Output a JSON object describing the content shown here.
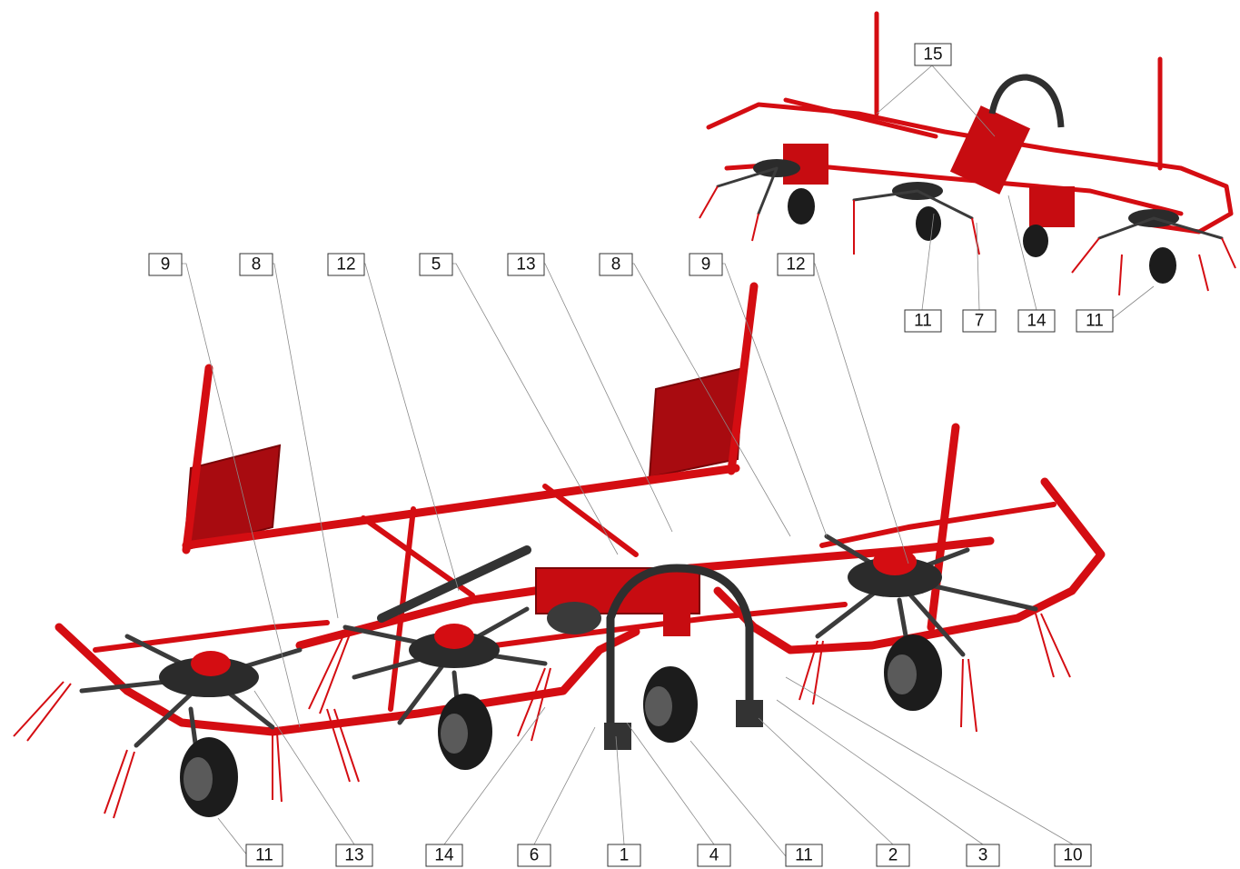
{
  "callouts": [
    {
      "id": "c-9-a",
      "text": "9"
    },
    {
      "id": "c-8-a",
      "text": "8"
    },
    {
      "id": "c-12-a",
      "text": "12"
    },
    {
      "id": "c-5",
      "text": "5"
    },
    {
      "id": "c-13-a",
      "text": "13"
    },
    {
      "id": "c-8-b",
      "text": "8"
    },
    {
      "id": "c-9-b",
      "text": "9"
    },
    {
      "id": "c-12-b",
      "text": "12"
    },
    {
      "id": "c-15",
      "text": "15"
    },
    {
      "id": "c-11-a",
      "text": "11"
    },
    {
      "id": "c-7",
      "text": "7"
    },
    {
      "id": "c-14-a",
      "text": "14"
    },
    {
      "id": "c-11-b",
      "text": "11"
    },
    {
      "id": "c-11-c",
      "text": "11"
    },
    {
      "id": "c-13-b",
      "text": "13"
    },
    {
      "id": "c-14-b",
      "text": "14"
    },
    {
      "id": "c-6",
      "text": "6"
    },
    {
      "id": "c-1",
      "text": "1"
    },
    {
      "id": "c-4",
      "text": "4"
    },
    {
      "id": "c-11-d",
      "text": "11"
    },
    {
      "id": "c-2",
      "text": "2"
    },
    {
      "id": "c-3",
      "text": "3"
    },
    {
      "id": "c-10",
      "text": "10"
    }
  ],
  "colors": {
    "frame": "#d40d12",
    "plate": "#a80b10",
    "tyre": "#1c1c1c",
    "arm": "#3b3b3b",
    "leader": "#8a8a8a"
  }
}
